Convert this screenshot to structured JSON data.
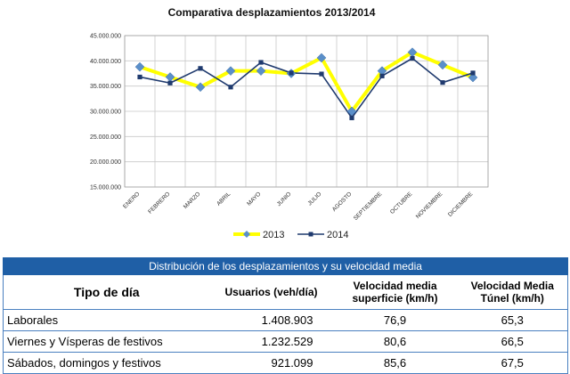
{
  "chart_data": {
    "type": "line",
    "title": "Comparativa desplazamientos 2013/2014",
    "categories": [
      "ENERO",
      "FEBRERO",
      "MARZO",
      "ABRIL",
      "MAYO",
      "JUNIO",
      "JULIO",
      "AGOSTO",
      "SEPTIEMBRE",
      "OCTUBRE",
      "NOVIEMBRE",
      "DICIEMBRE"
    ],
    "ylim": [
      15000000,
      45000000
    ],
    "yticks": [
      15000000,
      20000000,
      25000000,
      30000000,
      35000000,
      40000000,
      45000000
    ],
    "ytick_labels": [
      "15.000.000",
      "20.000.000",
      "25.000.000",
      "30.000.000",
      "35.000.000",
      "40.000.000",
      "45.000.000"
    ],
    "grid": true,
    "legend_position": "bottom",
    "series": [
      {
        "name": "2013",
        "color": "#ffff00",
        "marker_color": "#5b8fc9",
        "marker": "diamond",
        "values": [
          38800000,
          36800000,
          34800000,
          38000000,
          38000000,
          37500000,
          40600000,
          30000000,
          38000000,
          41700000,
          39200000,
          36700000
        ]
      },
      {
        "name": "2014",
        "color": "#1f3a6e",
        "marker_color": "#1f3a6e",
        "marker": "square",
        "values": [
          36800000,
          35600000,
          38500000,
          34800000,
          39700000,
          37600000,
          37400000,
          28700000,
          37000000,
          40500000,
          35700000,
          37600000
        ]
      }
    ]
  },
  "table": {
    "caption": "Distribución de los desplazamientos y su velocidad media",
    "headers": [
      "Tipo de día",
      "Usuarios (veh/día)",
      "Velocidad media superficie (km/h)",
      "Velocidad Media Túnel (km/h)"
    ],
    "rows": [
      [
        "Laborales",
        "1.408.903",
        "76,9",
        "65,3"
      ],
      [
        "Viernes y Vísperas de festivos",
        "1.232.529",
        "80,6",
        "66,5"
      ],
      [
        "Sábados, domingos y festivos",
        "921.099",
        "85,6",
        "67,5"
      ]
    ]
  }
}
